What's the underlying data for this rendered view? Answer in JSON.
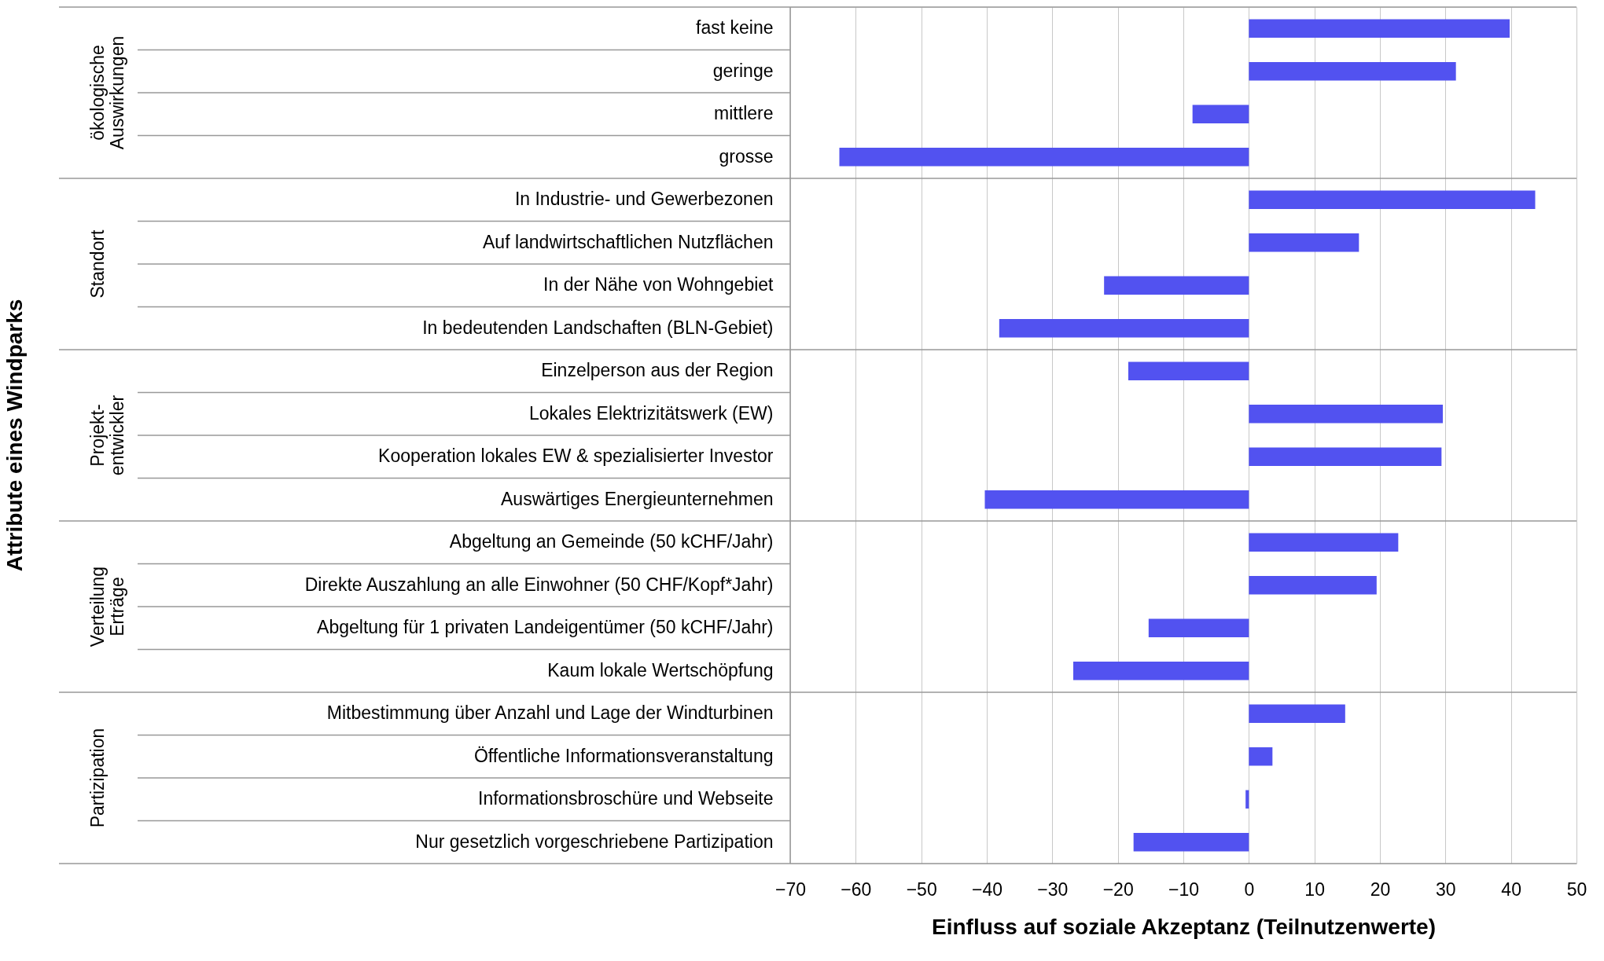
{
  "chart_data": {
    "type": "bar",
    "orientation": "horizontal",
    "categories": [
      "fast keine",
      "geringe",
      "mittlere",
      "grosse",
      "In Industrie- und Gewerbezonen",
      "Auf landwirtschaftlichen Nutzflächen",
      "In der Nähe von Wohngebiet",
      "In bedeutenden Landschaften (BLN-Gebiet)",
      "Einzelperson aus der Region",
      "Lokales Elektrizitätswerk (EW)",
      "Kooperation lokales EW & spezialisierter Investor",
      "Auswärtiges Energieunternehmen",
      "Abgeltung an Gemeinde (50 kCHF/Jahr)",
      "Direkte Auszahlung an alle Einwohner (50 CHF/Kopf*Jahr)",
      "Abgeltung für 1 privaten Landeigentümer (50 kCHF/Jahr)",
      "Kaum lokale Wertschöpfung",
      "Mitbestimmung über Anzahl und Lage der Windturbinen",
      "Öffentliche Informationsveranstaltung",
      "Informationsbroschüre und Webseite",
      "Nur gesetzlich vorgeschriebene Partizipation"
    ],
    "values": [
      39.8,
      31.6,
      -8.6,
      -62.5,
      43.7,
      16.8,
      -22.1,
      -38.1,
      -18.4,
      29.6,
      29.4,
      -40.3,
      22.8,
      19.5,
      -15.3,
      -26.8,
      14.7,
      3.6,
      -0.5,
      -17.6
    ],
    "color": "#5252f0",
    "xlim": [
      -70,
      50
    ],
    "xticks": [
      -70,
      -60,
      -50,
      -40,
      -30,
      -20,
      -10,
      0,
      10,
      20,
      30,
      40,
      50
    ],
    "xlabel": "Einfluss auf soziale Akzeptanz (Teilnutzenwerte)",
    "grid": "x",
    "annotations": [
      "Attribute eines Windparks",
      "ökologische\nAuswirkungen",
      "Standort",
      "Projekt-\nentwickler",
      "Verteilung\nErträge",
      "Partizipation"
    ]
  }
}
